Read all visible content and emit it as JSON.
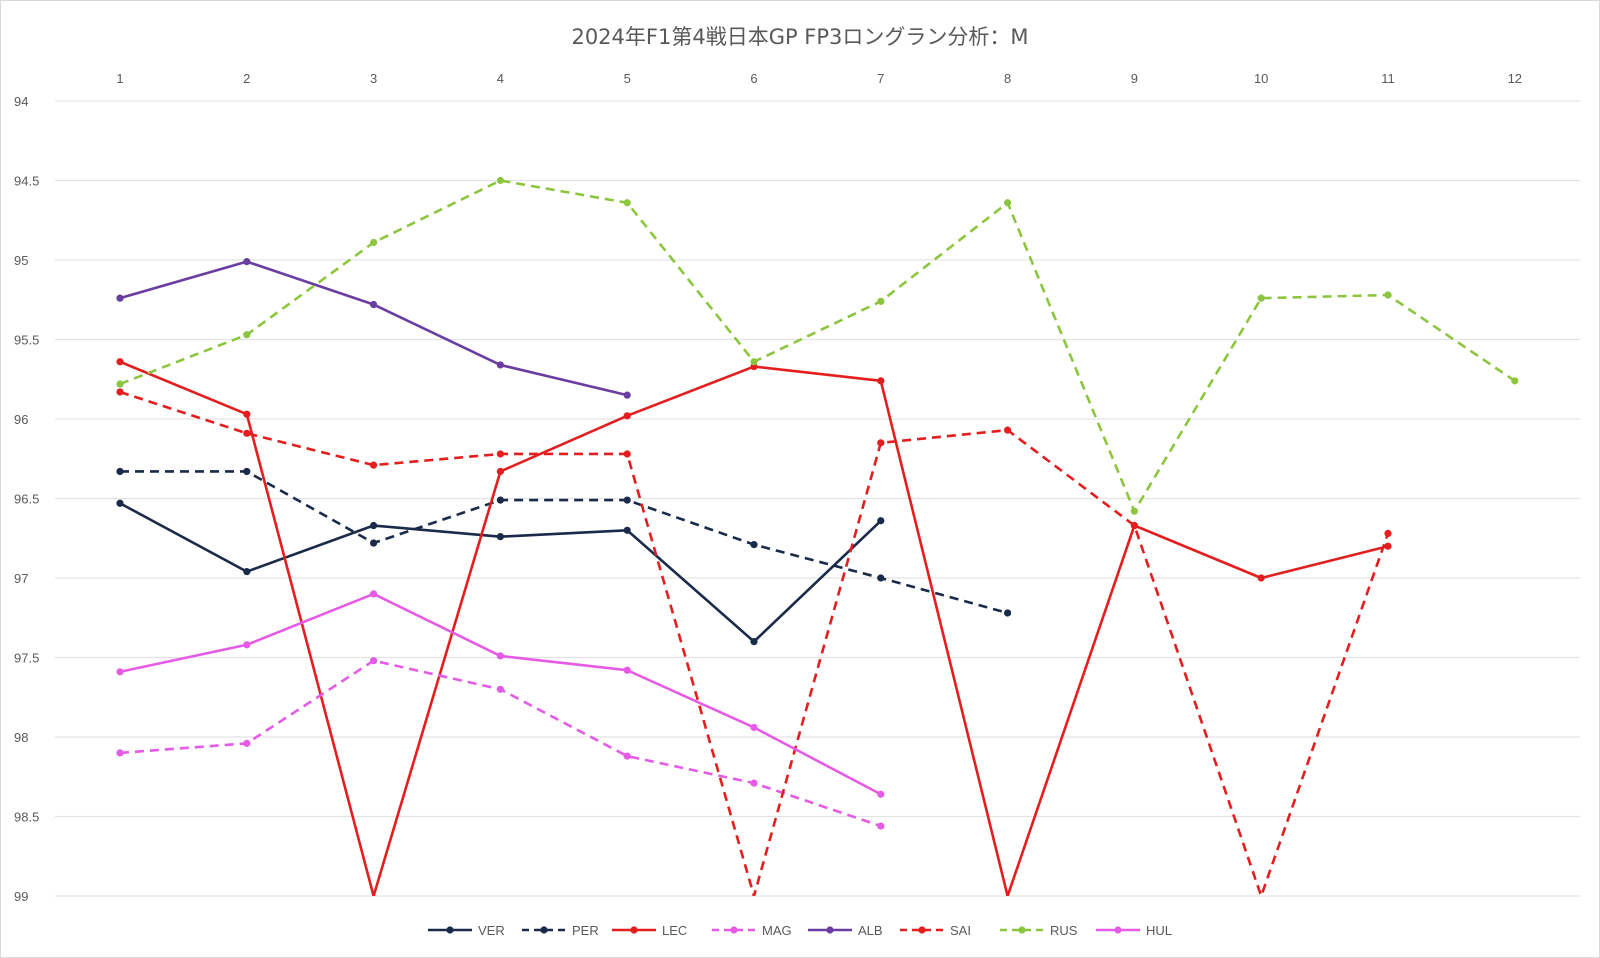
{
  "chart_data": {
    "type": "line",
    "title": "2024年F1第4戦日本GP FP3ロングラン分析：M",
    "x": [
      "1",
      "2",
      "3",
      "4",
      "5",
      "6",
      "7",
      "8",
      "9",
      "10",
      "11",
      "12"
    ],
    "y_ticks": [
      "94",
      "94.5",
      "95",
      "95.5",
      "96",
      "96.5",
      "97",
      "97.5",
      "98",
      "98.5",
      "99"
    ],
    "ylim": [
      94,
      99
    ],
    "y_reversed": true,
    "x_axis_position": "top",
    "grid": true,
    "legend_position": "bottom",
    "series": [
      {
        "name": "VER",
        "color": "#1a2a4a",
        "dashed": false,
        "values": [
          96.53,
          96.96,
          96.67,
          96.74,
          96.7,
          97.4,
          96.64,
          null,
          null,
          null,
          null,
          null
        ]
      },
      {
        "name": "PER",
        "color": "#1a2a4a",
        "dashed": true,
        "values": [
          96.33,
          96.33,
          96.78,
          96.51,
          96.51,
          96.79,
          97.0,
          97.22,
          null,
          null,
          null,
          null
        ]
      },
      {
        "name": "LEC",
        "color": "#e41e1e",
        "dashed": false,
        "values": [
          95.64,
          95.97,
          99.0,
          96.33,
          95.98,
          95.67,
          95.76,
          99.0,
          96.67,
          97.0,
          96.8,
          null
        ]
      },
      {
        "name": "MAG",
        "color": "#e65be6",
        "dashed": true,
        "values": [
          98.1,
          98.04,
          97.52,
          97.7,
          98.12,
          98.29,
          98.56,
          null,
          null,
          null,
          null,
          null
        ]
      },
      {
        "name": "ALB",
        "color": "#6a3ea1",
        "dashed": false,
        "values": [
          95.24,
          95.01,
          95.28,
          95.66,
          95.85,
          null,
          null,
          null,
          null,
          null,
          null,
          null
        ]
      },
      {
        "name": "SAI",
        "color": "#e41e1e",
        "dashed": true,
        "values": [
          95.83,
          96.09,
          96.29,
          96.22,
          96.22,
          99.0,
          96.15,
          96.07,
          96.67,
          99.0,
          96.72,
          null
        ]
      },
      {
        "name": "RUS",
        "color": "#8cc63e",
        "dashed": true,
        "values": [
          95.78,
          95.47,
          94.89,
          94.5,
          94.64,
          95.64,
          95.26,
          94.64,
          96.58,
          95.24,
          95.22,
          95.76
        ]
      },
      {
        "name": "HUL",
        "color": "#e65be6",
        "dashed": false,
        "values": [
          97.59,
          97.42,
          97.1,
          97.49,
          97.58,
          97.94,
          98.36,
          null,
          null,
          null,
          null,
          null
        ]
      }
    ]
  }
}
